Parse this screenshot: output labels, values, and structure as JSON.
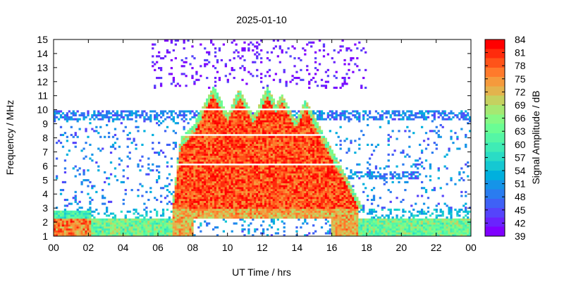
{
  "chart_data": {
    "type": "heatmap",
    "title": "2025-01-10",
    "xlabel": "UT Time / hrs",
    "ylabel": "Frequency / MHz",
    "xlim": [
      0,
      24
    ],
    "ylim": [
      1,
      15
    ],
    "x_ticks": [
      "00",
      "02",
      "04",
      "06",
      "08",
      "10",
      "12",
      "14",
      "16",
      "18",
      "20",
      "22",
      "00"
    ],
    "y_ticks": [
      "1",
      "2",
      "3",
      "4",
      "5",
      "6",
      "7",
      "8",
      "9",
      "10",
      "11",
      "12",
      "13",
      "14",
      "15"
    ],
    "colorbar": {
      "label": "Signal Amplitude / dB",
      "range": [
        39,
        84
      ],
      "ticks": [
        "39",
        "42",
        "45",
        "48",
        "51",
        "54",
        "57",
        "60",
        "63",
        "66",
        "69",
        "72",
        "75",
        "78",
        "81",
        "84"
      ],
      "colors": [
        "#7f00ff",
        "#6a23fd",
        "#5544fb",
        "#3f61f6",
        "#2a7cf0",
        "#1594e8",
        "#00b0de",
        "#15c8d2",
        "#2adcc5",
        "#3fecb5",
        "#55f6a5",
        "#6afd94",
        "#86f984",
        "#a6e872",
        "#c5d160",
        "#e3b34d",
        "#f59a3c",
        "#ff7a2b",
        "#ff5319",
        "#ff2b0c",
        "#ff0000"
      ]
    },
    "features": {
      "daytime_span_hours": [
        6.8,
        18.3
      ],
      "peak_upper_freq_MHz": 11.8,
      "strong_band_MHz": [
        4,
        10
      ],
      "night_band_MHz": [
        1,
        3
      ]
    }
  }
}
